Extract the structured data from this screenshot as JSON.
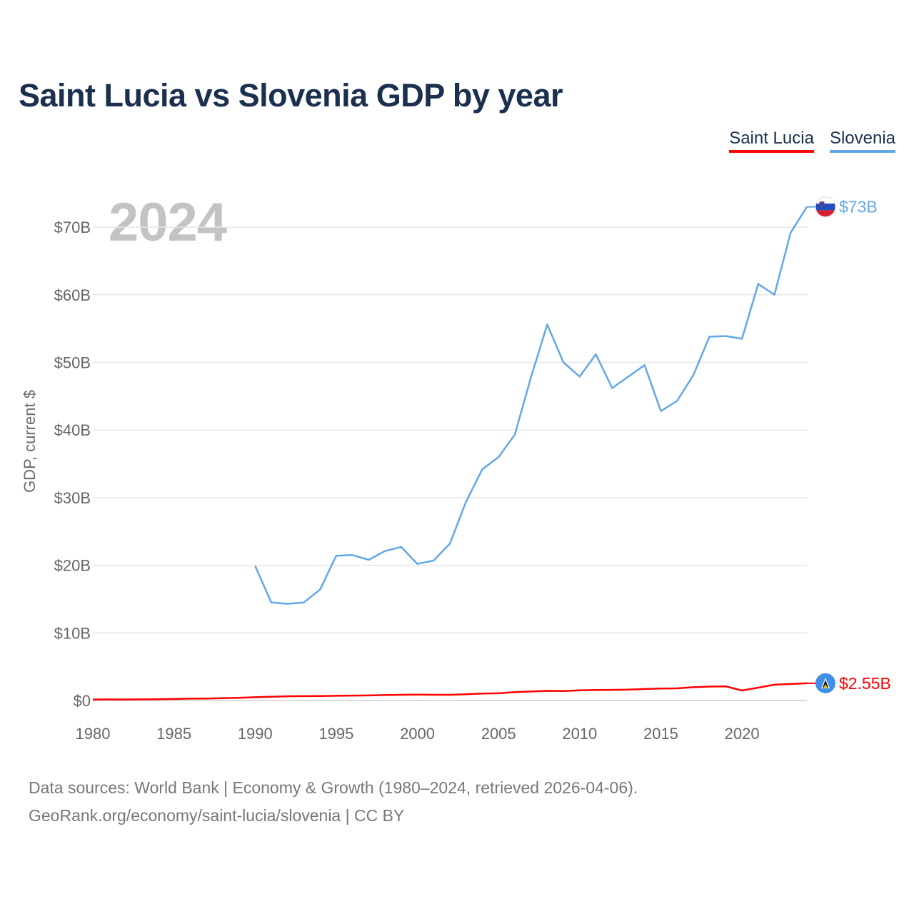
{
  "title": "Saint Lucia vs Slovenia GDP by year",
  "year_label": "2024",
  "legend": [
    {
      "name": "Saint Lucia",
      "color": "#ff0000"
    },
    {
      "name": "Slovenia",
      "color": "#63a7e6"
    }
  ],
  "footer": {
    "line1": "Data sources: World Bank | Economy & Growth (1980–2024, retrieved 2026-04-06).",
    "line2": "GeoRank.org/economy/saint-lucia/slovenia | CC BY"
  },
  "chart_data": {
    "type": "line",
    "title": "Saint Lucia vs Slovenia GDP by year",
    "xlabel": "",
    "ylabel": "GDP, current $",
    "xlim": [
      1980,
      2024
    ],
    "ylim": [
      0,
      73
    ],
    "grid": true,
    "legend_position": "top-right",
    "x_ticks": [
      1980,
      1985,
      1990,
      1995,
      2000,
      2005,
      2010,
      2015,
      2020
    ],
    "x_tick_labels": [
      "1980",
      "1985",
      "1990",
      "1995",
      "2000",
      "2005",
      "2010",
      "2015",
      "2020"
    ],
    "y_ticks": [
      0,
      10,
      20,
      30,
      40,
      50,
      60,
      70
    ],
    "y_tick_labels": [
      "$0",
      "$10B",
      "$20B",
      "$30B",
      "$40B",
      "$50B",
      "$60B",
      "$70B"
    ],
    "units": "billions USD",
    "series": [
      {
        "name": "Saint Lucia",
        "color": "#ff0000",
        "end_label": "$2.55B",
        "flag_icon": "saint-lucia-flag-icon",
        "x": [
          1980,
          1981,
          1982,
          1983,
          1984,
          1985,
          1986,
          1987,
          1988,
          1989,
          1990,
          1991,
          1992,
          1993,
          1994,
          1995,
          1996,
          1997,
          1998,
          1999,
          2000,
          2001,
          2002,
          2003,
          2004,
          2005,
          2006,
          2007,
          2008,
          2009,
          2010,
          2011,
          2012,
          2013,
          2014,
          2015,
          2016,
          2017,
          2018,
          2019,
          2020,
          2021,
          2022,
          2023,
          2024
        ],
        "values": [
          0.15,
          0.16,
          0.15,
          0.17,
          0.19,
          0.22,
          0.27,
          0.3,
          0.35,
          0.4,
          0.49,
          0.55,
          0.62,
          0.64,
          0.67,
          0.7,
          0.73,
          0.75,
          0.8,
          0.85,
          0.87,
          0.85,
          0.85,
          0.93,
          1.02,
          1.07,
          1.25,
          1.33,
          1.43,
          1.4,
          1.5,
          1.56,
          1.57,
          1.61,
          1.7,
          1.76,
          1.8,
          1.96,
          2.06,
          2.09,
          1.48,
          1.9,
          2.33,
          2.44,
          2.55
        ]
      },
      {
        "name": "Slovenia",
        "color": "#63a7e6",
        "end_label": "$73B",
        "flag_icon": "slovenia-flag-icon",
        "x": [
          1990,
          1991,
          1992,
          1993,
          1994,
          1995,
          1996,
          1997,
          1998,
          1999,
          2000,
          2001,
          2002,
          2003,
          2004,
          2005,
          2006,
          2007,
          2008,
          2009,
          2010,
          2011,
          2012,
          2013,
          2014,
          2015,
          2016,
          2017,
          2018,
          2019,
          2020,
          2021,
          2022,
          2023,
          2024
        ],
        "values": [
          19.9,
          14.5,
          14.3,
          14.5,
          16.4,
          21.4,
          21.5,
          20.8,
          22.1,
          22.7,
          20.2,
          20.7,
          23.2,
          29.4,
          34.2,
          36.0,
          39.3,
          47.8,
          55.6,
          50.0,
          47.9,
          51.2,
          46.2,
          47.9,
          49.6,
          42.8,
          44.3,
          48.1,
          53.8,
          53.9,
          53.5,
          61.6,
          60.0,
          69.2,
          73.0
        ]
      }
    ]
  }
}
